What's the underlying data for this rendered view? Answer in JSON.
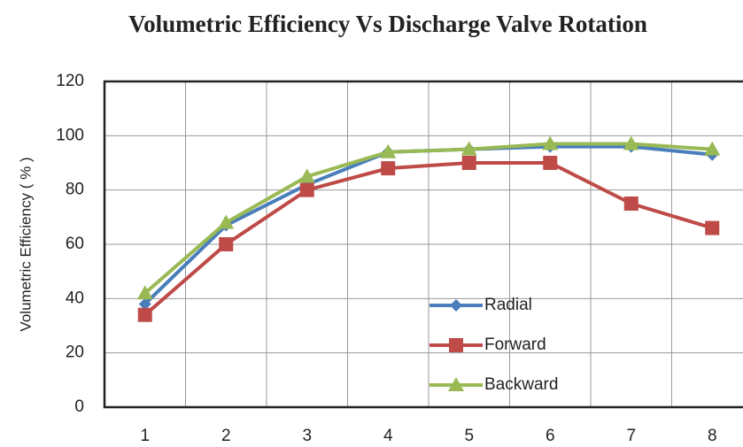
{
  "chart_data": {
    "type": "line",
    "title": "Volumetric Efficiency Vs Discharge Valve Rotation",
    "y_label": "Volumetric Efficiency ( % )",
    "categories": [
      "1",
      "2",
      "3",
      "4",
      "5",
      "6",
      "7",
      "8"
    ],
    "series": [
      {
        "name": "Radial",
        "color": "#4a7ebb",
        "marker": "diamond",
        "values": [
          38,
          67,
          82,
          94,
          95,
          96,
          96,
          93
        ]
      },
      {
        "name": "Forward",
        "color": "#be4b48",
        "marker": "square",
        "values": [
          34,
          60,
          80,
          88,
          90,
          90,
          75,
          66
        ]
      },
      {
        "name": "Backward",
        "color": "#98b954",
        "marker": "triangle",
        "values": [
          42,
          68,
          85,
          94,
          95,
          97,
          97,
          95
        ]
      }
    ],
    "ylim": [
      0,
      120
    ],
    "yticks": [
      0,
      20,
      40,
      60,
      80,
      100,
      120
    ],
    "grid": true,
    "legend": "lower center"
  }
}
